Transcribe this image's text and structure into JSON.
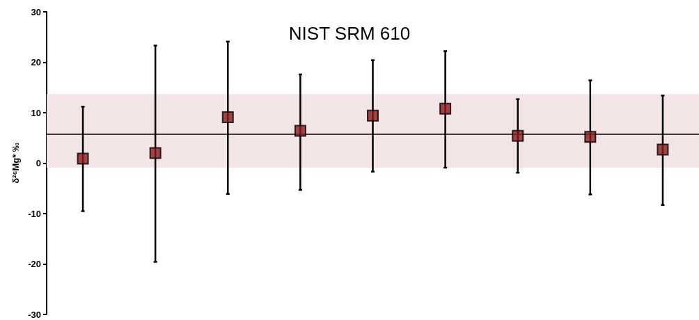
{
  "chart_data": {
    "type": "scatter",
    "title": "NIST SRM 610",
    "ylabel": "δ²⁶Mg* ‰",
    "categories": [
      null,
      null,
      null,
      null,
      null,
      null,
      null,
      null,
      null
    ],
    "series": [
      {
        "color": "#8b1a1a",
        "values": [
          0.9,
          2.0,
          9.1,
          6.4,
          9.4,
          10.8,
          5.4,
          5.2,
          2.7
        ],
        "errors": [
          [
            -9.5,
            11.2
          ],
          [
            -19.6,
            23.3
          ],
          [
            -6.1,
            24.1
          ],
          [
            -5.3,
            17.6
          ],
          [
            -1.7,
            20.4
          ],
          [
            -0.9,
            22.2
          ],
          [
            -1.9,
            12.7
          ],
          [
            -6.2,
            16.4
          ],
          [
            -8.3,
            13.4
          ]
        ]
      }
    ],
    "ylim": [
      -30,
      30
    ],
    "yticks": [
      -30,
      -20,
      -10,
      0,
      10,
      20,
      30
    ],
    "ref_lines": [
      {
        "axis": "y",
        "value": 5.8,
        "color": "#000000"
      }
    ],
    "bands": [
      {
        "axis": "y",
        "from": -0.9,
        "to": 13.7,
        "color": "#f3e4e5"
      }
    ],
    "marker": "square",
    "grid": false
  }
}
